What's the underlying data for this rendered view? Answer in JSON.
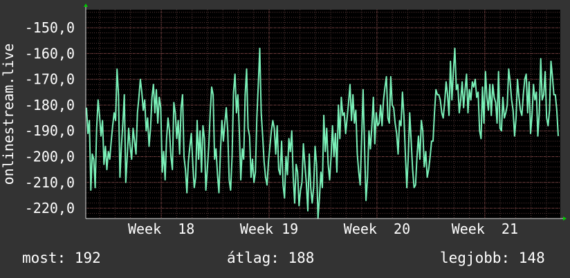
{
  "chart_data": {
    "type": "line",
    "ylabel": "onlinestream.live",
    "yticks": [
      -150,
      -160,
      -170,
      -180,
      -190,
      -200,
      -210,
      -220
    ],
    "ytick_labels": [
      "-150,0",
      "-160,0",
      "-170,0",
      "-180,0",
      "-190,0",
      "-200,0",
      "-210,0",
      "-220,0"
    ],
    "ylim": [
      -224,
      -143
    ],
    "x_ticks": [
      {
        "label": "Week  18",
        "x": 18
      },
      {
        "label": "Week 19",
        "x": 19
      },
      {
        "label": "Week  20",
        "x": 20
      },
      {
        "label": "Week  21",
        "x": 21
      }
    ],
    "xlim": [
      17.3,
      21.7
    ],
    "grid": true,
    "colors": {
      "background": "#333333",
      "plot": "#000000",
      "line": "#7af0b8",
      "grid": "#5a3a3a",
      "axis": "#d8d8d8",
      "arrow": "#00cc00"
    },
    "series": [
      {
        "values": [
          -181,
          -191,
          -186,
          -213,
          -199,
          -201,
          -212,
          -189,
          -178,
          -184,
          -192,
          -186,
          -203,
          -196,
          -205,
          -198,
          -201,
          -194,
          -188,
          -183,
          -186,
          -166,
          -176,
          -208,
          -196,
          -187,
          -176,
          -210,
          -200,
          -189,
          -196,
          -201,
          -189,
          -194,
          -199,
          -183,
          -177,
          -170,
          -175,
          -182,
          -178,
          -190,
          -185,
          -196,
          -189,
          -177,
          -172,
          -183,
          -174,
          -187,
          -177,
          -181,
          -206,
          -198,
          -209,
          -193,
          -185,
          -190,
          -200,
          -205,
          -179,
          -183,
          -193,
          -186,
          -199,
          -181,
          -176,
          -200,
          -205,
          -214,
          -202,
          -196,
          -191,
          -203,
          -212,
          -208,
          -186,
          -201,
          -190,
          -206,
          -188,
          -193,
          -213,
          -205,
          -196,
          -183,
          -173,
          -176,
          -201,
          -197,
          -207,
          -214,
          -198,
          -186,
          -194,
          -187,
          -181,
          -190,
          -209,
          -213,
          -200,
          -175,
          -168,
          -183,
          -176,
          -190,
          -209,
          -197,
          -201,
          -176,
          -166,
          -189,
          -192,
          -208,
          -201,
          -210,
          -206,
          -185,
          -172,
          -158,
          -183,
          -192,
          -202,
          -208,
          -211,
          -202,
          -196,
          -190,
          -186,
          -189,
          -199,
          -188,
          -205,
          -207,
          -194,
          -211,
          -216,
          -200,
          -207,
          -193,
          -198,
          -190,
          -208,
          -218,
          -203,
          -206,
          -219,
          -213,
          -210,
          -195,
          -203,
          -210,
          -221,
          -199,
          -212,
          -218,
          -212,
          -196,
          -203,
          -224,
          -216,
          -206,
          -212,
          -184,
          -198,
          -189,
          -203,
          -209,
          -200,
          -188,
          -200,
          -191,
          -206,
          -180,
          -193,
          -177,
          -184,
          -183,
          -191,
          -185,
          -179,
          -172,
          -186,
          -176,
          -187,
          -182,
          -199,
          -206,
          -211,
          -193,
          -174,
          -196,
          -217,
          -208,
          -190,
          -197,
          -188,
          -177,
          -195,
          -183,
          -188,
          -187,
          -180,
          -188,
          -178,
          -173,
          -169,
          -185,
          -187,
          -169,
          -180,
          -181,
          -187,
          -191,
          -199,
          -186,
          -188,
          -175,
          -184,
          -199,
          -212,
          -200,
          -183,
          -194,
          -205,
          -212,
          -211,
          -200,
          -192,
          -201,
          -186,
          -190,
          -204,
          -198,
          -208,
          -205,
          -200,
          -194,
          -194,
          -183,
          -174,
          -176,
          -176,
          -178,
          -183,
          -185,
          -179,
          -171,
          -176,
          -184,
          -163,
          -178,
          -167,
          -158,
          -174,
          -172,
          -183,
          -178,
          -171,
          -181,
          -174,
          -168,
          -183,
          -174,
          -178,
          -171,
          -173,
          -170,
          -177,
          -175,
          -190,
          -193,
          -173,
          -187,
          -167,
          -177,
          -182,
          -172,
          -184,
          -172,
          -177,
          -179,
          -187,
          -167,
          -189,
          -190,
          -177,
          -185,
          -183,
          -180,
          -166,
          -171,
          -178,
          -182,
          -192,
          -185,
          -170,
          -177,
          -182,
          -184,
          -176,
          -170,
          -168,
          -183,
          -171,
          -191,
          -184,
          -172,
          -178,
          -175,
          -192,
          -183,
          -162,
          -178,
          -176,
          -167,
          -185,
          -188,
          -182,
          -163,
          -169,
          -176,
          -176,
          -182,
          -192
        ]
      }
    ]
  },
  "legend": {
    "current": "most: 192",
    "average": "átlag: 188",
    "best": "legjobb: 148"
  }
}
